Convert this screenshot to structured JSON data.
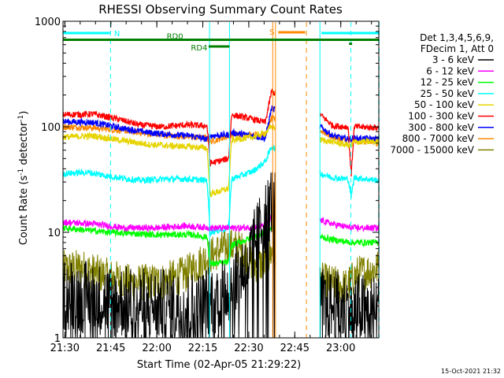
{
  "chart_data": {
    "type": "line",
    "title": "RHESSI Observing Summary Count Rates",
    "xlabel": "Start Time (02-Apr-05 21:29:22)",
    "ylabel": "Count Rate (s⁻¹ detector⁻¹)",
    "ylabel_parts": {
      "main": "Count Rate (s",
      "sup1": "-1",
      "mid": " detector",
      "sup2": "-1",
      "end": ")"
    },
    "yscale": "log",
    "ylim": [
      1,
      1000
    ],
    "xlim_minutes": [
      0,
      103
    ],
    "x_ticks": [
      {
        "m": 0.6,
        "label": "21:30"
      },
      {
        "m": 15.6,
        "label": "21:45"
      },
      {
        "m": 30.6,
        "label": "22:00"
      },
      {
        "m": 45.6,
        "label": "22:15"
      },
      {
        "m": 60.6,
        "label": "22:30"
      },
      {
        "m": 75.6,
        "label": "22:45"
      },
      {
        "m": 90.6,
        "label": "23:00"
      }
    ],
    "y_ticks": [
      {
        "v": 1,
        "label": "1"
      },
      {
        "v": 10,
        "label": "10"
      },
      {
        "v": 100,
        "label": "100"
      },
      {
        "v": 1000,
        "label": "1000"
      }
    ],
    "legend_header": [
      "Det 1,3,4,5,6,9,",
      "FDecim 1, Att 0"
    ],
    "legend_placement": "right",
    "timestamp": "15-Oct-2021 21:32",
    "series": [
      {
        "name": "3 - 6 keV",
        "color": "#000000",
        "style": "black",
        "points": [
          [
            0,
            2.6
          ],
          [
            18,
            2.2
          ],
          [
            44,
            1.9
          ],
          [
            54,
            3.0
          ],
          [
            60,
            5.0
          ],
          [
            68,
            20
          ],
          [
            85,
            2.0
          ],
          [
            103,
            1.8
          ]
        ]
      },
      {
        "name": "6 - 12 keV",
        "color": "#ff00ff",
        "points": [
          [
            0,
            12.5
          ],
          [
            10,
            12
          ],
          [
            20,
            11
          ],
          [
            30,
            11
          ],
          [
            40,
            11.5
          ],
          [
            49,
            11
          ],
          [
            52,
            11
          ],
          [
            58,
            11
          ],
          [
            66,
            11.5
          ],
          [
            68,
            14
          ],
          [
            84,
            13
          ],
          [
            88,
            12
          ],
          [
            94,
            11
          ],
          [
            103,
            11
          ]
        ]
      },
      {
        "name": "12 - 25 keV",
        "color": "#00ff00",
        "points": [
          [
            0,
            11
          ],
          [
            15,
            10
          ],
          [
            30,
            9.5
          ],
          [
            42,
            9.5
          ],
          [
            47,
            9
          ],
          [
            48,
            5.0
          ],
          [
            54,
            5.2
          ],
          [
            55,
            7.5
          ],
          [
            66,
            10
          ],
          [
            68,
            11
          ],
          [
            84,
            9
          ],
          [
            88,
            8.5
          ],
          [
            94,
            8
          ],
          [
            103,
            8
          ]
        ]
      },
      {
        "name": "25 - 50 keV",
        "color": "#00ffff",
        "points": [
          [
            0,
            36
          ],
          [
            8,
            37
          ],
          [
            15,
            34
          ],
          [
            25,
            31
          ],
          [
            33,
            32
          ],
          [
            40,
            32
          ],
          [
            47,
            31
          ],
          [
            48,
            10
          ],
          [
            54,
            11
          ],
          [
            55,
            32
          ],
          [
            62,
            38
          ],
          [
            66,
            47
          ],
          [
            68,
            65
          ],
          [
            84,
            36
          ],
          [
            88,
            33
          ],
          [
            93,
            32
          ],
          [
            94,
            22
          ],
          [
            95,
            33
          ],
          [
            103,
            31
          ]
        ]
      },
      {
        "name": "50 - 100 keV",
        "color": "#e6d400",
        "points": [
          [
            0,
            80
          ],
          [
            10,
            82
          ],
          [
            18,
            75
          ],
          [
            28,
            68
          ],
          [
            40,
            65
          ],
          [
            47,
            63
          ],
          [
            48,
            23
          ],
          [
            54,
            26
          ],
          [
            55,
            75
          ],
          [
            62,
            80
          ],
          [
            66,
            88
          ],
          [
            68,
            100
          ],
          [
            84,
            75
          ],
          [
            88,
            72
          ],
          [
            94,
            66
          ],
          [
            95,
            72
          ],
          [
            103,
            72
          ]
        ]
      },
      {
        "name": "100 - 300 keV",
        "color": "#ff0000",
        "points": [
          [
            0,
            130
          ],
          [
            10,
            132
          ],
          [
            18,
            118
          ],
          [
            25,
            104
          ],
          [
            32,
            100
          ],
          [
            40,
            104
          ],
          [
            47,
            102
          ],
          [
            48,
            45
          ],
          [
            54,
            50
          ],
          [
            55,
            130
          ],
          [
            62,
            118
          ],
          [
            66,
            110
          ],
          [
            68,
            215
          ],
          [
            84,
            130
          ],
          [
            88,
            102
          ],
          [
            93,
            100
          ],
          [
            94,
            35
          ],
          [
            95,
            100
          ],
          [
            103,
            98
          ]
        ]
      },
      {
        "name": "300 - 800 keV",
        "color": "#0000ff",
        "points": [
          [
            0,
            112
          ],
          [
            10,
            110
          ],
          [
            20,
            96
          ],
          [
            28,
            88
          ],
          [
            36,
            84
          ],
          [
            42,
            82
          ],
          [
            47,
            76
          ],
          [
            48,
            82
          ],
          [
            54,
            84
          ],
          [
            55,
            88
          ],
          [
            62,
            82
          ],
          [
            66,
            78
          ],
          [
            68,
            150
          ],
          [
            84,
            100
          ],
          [
            88,
            82
          ],
          [
            93,
            76
          ],
          [
            95,
            78
          ],
          [
            103,
            76
          ]
        ]
      },
      {
        "name": "800 - 7000 keV",
        "color": "#ff8800",
        "points": [
          [
            0,
            100
          ],
          [
            10,
            98
          ],
          [
            20,
            92
          ],
          [
            28,
            86
          ],
          [
            36,
            82
          ],
          [
            42,
            80
          ],
          [
            47,
            78
          ],
          [
            48,
            72
          ],
          [
            54,
            82
          ],
          [
            55,
            84
          ],
          [
            62,
            84
          ],
          [
            66,
            84
          ],
          [
            68,
            120
          ],
          [
            84,
            92
          ],
          [
            88,
            80
          ],
          [
            94,
            72
          ],
          [
            95,
            74
          ],
          [
            103,
            70
          ]
        ]
      },
      {
        "name": "7000 - 15000 keV",
        "color": "#808000",
        "style": "olive",
        "points": [
          [
            0,
            4.5
          ],
          [
            6,
            4.6
          ],
          [
            12,
            4.0
          ],
          [
            22,
            3.3
          ],
          [
            32,
            3.4
          ],
          [
            40,
            4.0
          ],
          [
            44,
            5.0
          ],
          [
            48,
            6.0
          ],
          [
            54,
            7.5
          ],
          [
            58,
            7.0
          ],
          [
            62,
            5.0
          ],
          [
            66,
            5.0
          ],
          [
            68,
            6.5
          ],
          [
            84,
            3.5
          ],
          [
            92,
            3.0
          ],
          [
            96,
            4.0
          ],
          [
            103,
            4.6
          ]
        ]
      }
    ],
    "vlines": [
      {
        "m": 0,
        "color": "#00ffff",
        "dashed": false
      },
      {
        "m": 15.5,
        "color": "#00ffff",
        "dashed": true
      },
      {
        "m": 47.8,
        "color": "#00ffff",
        "dashed": false
      },
      {
        "m": 54.3,
        "color": "#00ffff",
        "dashed": false
      },
      {
        "m": 68.4,
        "color": "#ff8800",
        "dashed": false
      },
      {
        "m": 69.3,
        "color": "#ff8800",
        "dashed": false
      },
      {
        "m": 79.4,
        "color": "#ff8800",
        "dashed": true
      },
      {
        "m": 83.8,
        "color": "#00ffff",
        "dashed": false
      },
      {
        "m": 93.9,
        "color": "#00ffff",
        "dashed": true
      },
      {
        "m": 103.1,
        "color": "#00ffff",
        "dashed": true
      }
    ],
    "flag_bars": [
      {
        "label": "N",
        "color": "#00ffff",
        "level": 1,
        "segments": [
          [
            0,
            15.3
          ],
          [
            84.3,
            103
          ]
        ]
      },
      {
        "label": "RD0",
        "color": "#008000",
        "level": 2,
        "segments": [
          [
            0,
            103
          ]
        ]
      },
      {
        "label": "RD4",
        "color": "#008000",
        "level": 3,
        "segments": [
          [
            47.5,
            54.3
          ]
        ]
      },
      {
        "label": "S",
        "color": "#ff8800",
        "level": 0,
        "segments": [
          [
            70.2,
            79.0
          ]
        ]
      },
      {
        "label": "",
        "color": "#008000",
        "level": 2.6,
        "segments": [
          [
            93.3,
            94.3
          ]
        ]
      }
    ],
    "data_gap": [
      69.3,
      83.8
    ]
  }
}
